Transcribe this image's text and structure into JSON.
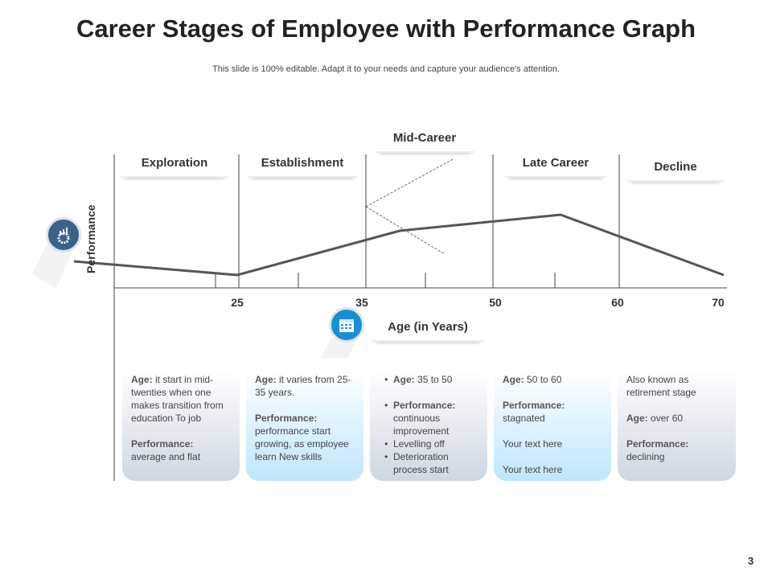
{
  "title": "Career Stages of Employee with Performance Graph",
  "subtitle": "This slide is 100% editable. Adapt it to your needs and capture your audience's attention.",
  "stages": [
    "Exploration",
    "Establishment",
    "Mid-Career",
    "Late Career",
    "Decline"
  ],
  "y_axis_label": "Performance",
  "x_axis_label": "Age (in Years)",
  "x_ticks": [
    "25",
    "35",
    "50",
    "60",
    "70"
  ],
  "cards": [
    {
      "age_label": "Age:",
      "age_text": "it start in mid-twenties when one makes transition from education To job",
      "perf_label": "Performance:",
      "perf_text": "average  and flat"
    },
    {
      "age_label": "Age:",
      "age_text": "it varies from 25-35 years.",
      "perf_label": "Performance:",
      "perf_text": "performance start growing, as employee learn New skills"
    },
    {
      "age_label": "Age:",
      "age_text": "35 to 50",
      "perf_label": "Performance:",
      "perf_text": "continuous improvement",
      "b3": "Levelling off",
      "b4": "Deterioration process start"
    },
    {
      "age_label": "Age:",
      "age_text": "50 to 60",
      "perf_label": "Performance:",
      "perf_text": "stagnated",
      "t1": "Your text here",
      "t2": "Your text here"
    },
    {
      "intro": "Also known as retirement stage",
      "age_label": "Age:",
      "age_text": "over  60",
      "perf_label": "Performance:",
      "perf_text": "declining"
    }
  ],
  "page_number": "3",
  "colors": {
    "icon_dark": "#3d6289",
    "icon_blue": "#1a8fd0",
    "line": "#555555"
  }
}
